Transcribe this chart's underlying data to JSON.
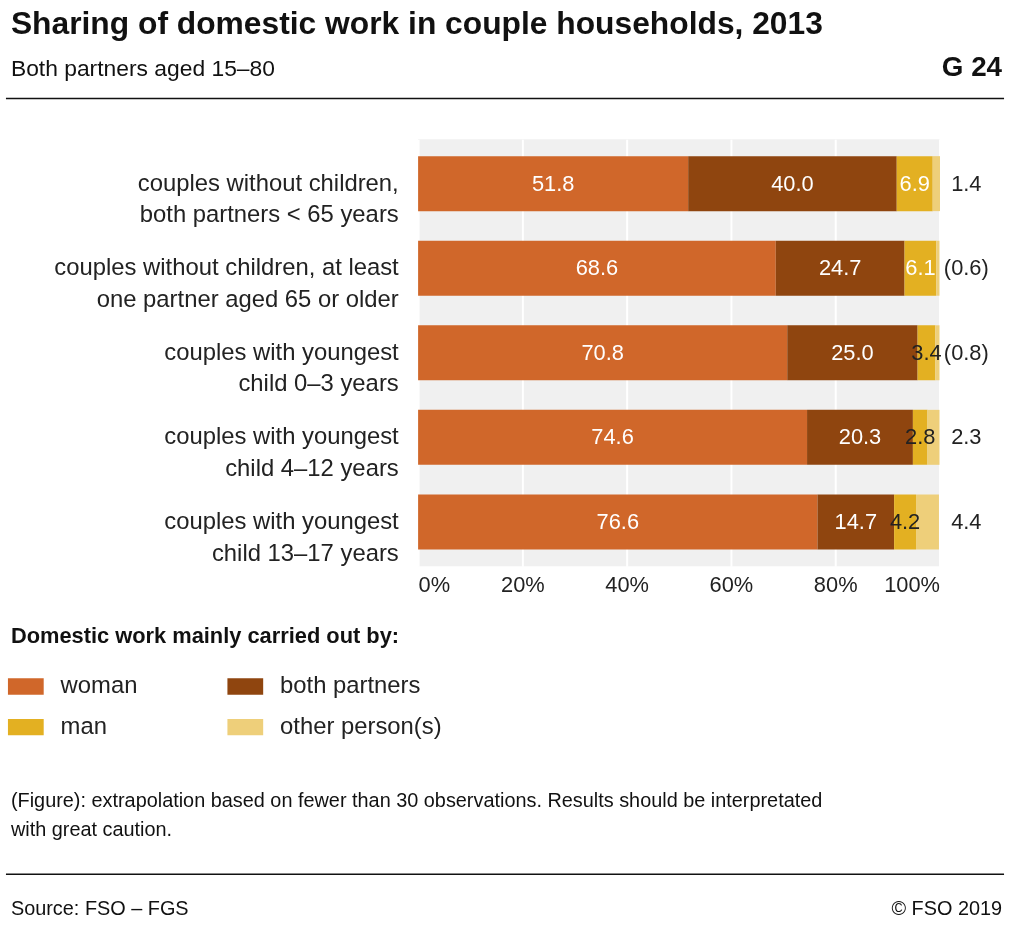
{
  "chart_data": {
    "type": "bar",
    "orientation": "horizontal",
    "stacked": true,
    "title": "Sharing of domestic work in couple households, 2013",
    "subtitle": "Both partners aged 15–80",
    "categories": [
      "couples without children,\nboth partners < 65 years",
      "couples without children, at least\none partner aged 65 or older",
      "couples with youngest\nchild 0–3 years",
      "couples with youngest\nchild 4–12 years",
      "couples with youngest\nchild 13–17 years"
    ],
    "series": [
      {
        "name": "woman",
        "color": "#d0672a",
        "values": [
          51.8,
          68.6,
          70.8,
          74.6,
          76.6
        ]
      },
      {
        "name": "both partners",
        "color": "#8f450f",
        "values": [
          40.0,
          24.7,
          25.0,
          20.3,
          14.7
        ],
        "value_labels": [
          "40.0",
          "24.7",
          "25.0",
          "20.3",
          "14.7"
        ]
      },
      {
        "name": "man",
        "color": "#e3b022",
        "values": [
          6.9,
          6.1,
          3.4,
          2.8,
          4.2
        ]
      },
      {
        "name": "other person(s)",
        "color": "#eecf7a",
        "values": [
          1.4,
          0.6,
          0.8,
          2.3,
          4.4
        ],
        "value_labels": [
          "1.4",
          "(0.6)",
          "(0.8)",
          "2.3",
          "4.4"
        ]
      }
    ],
    "data_labels": true,
    "xlim": [
      0,
      100
    ],
    "xticks": [
      {
        "value": 0,
        "label": "0%"
      },
      {
        "value": 20,
        "label": "20%"
      },
      {
        "value": 40,
        "label": "40%"
      },
      {
        "value": 60,
        "label": "60%"
      },
      {
        "value": 80,
        "label": "80%"
      },
      {
        "value": 100,
        "label": "100%"
      }
    ],
    "grid": "x",
    "legend": "bottom",
    "legend_title": "Domestic work mainly carried out by:",
    "annotations": [
      "G 24",
      "(Figure): extrapolation based on fewer than 30 observations. Results should be interpretated\nwith great caution.",
      "Source: FSO – FGS",
      "© FSO 2019"
    ]
  }
}
